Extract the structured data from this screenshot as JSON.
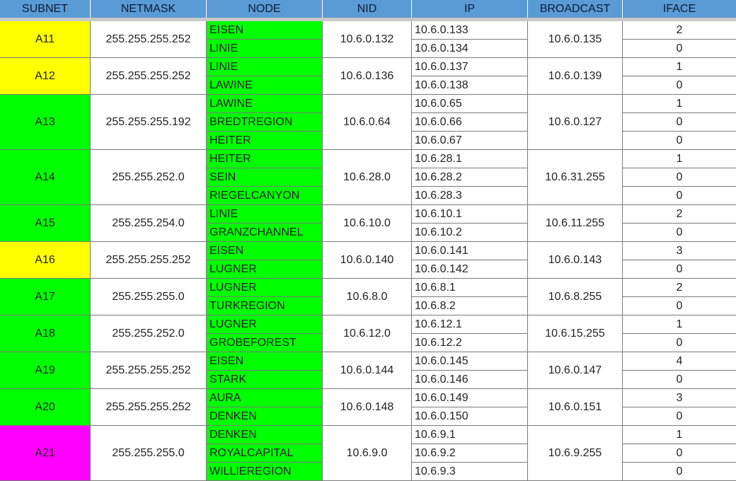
{
  "colors": {
    "header": "#5b9bd5",
    "yellow": "#ffff00",
    "green": "#00ff00",
    "magenta": "#ff00ff",
    "white": "#ffffff"
  },
  "headers": [
    "SUBNET",
    "NETMASK",
    "NODE",
    "NID",
    "IP",
    "BROADCAST",
    "IFACE"
  ],
  "subnets": [
    {
      "subnet": "A11",
      "color": "#ffff00",
      "netmask": "255.255.255.252",
      "nid": "10.6.0.132",
      "broadcast": "10.6.0.135",
      "rows": [
        {
          "node": "EISEN",
          "ip": "10.6.0.133",
          "iface": "2"
        },
        {
          "node": "LINIE",
          "ip": "10.6.0.134",
          "iface": "0"
        }
      ]
    },
    {
      "subnet": "A12",
      "color": "#ffff00",
      "netmask": "255.255.255.252",
      "nid": "10.6.0.136",
      "broadcast": "10.6.0.139",
      "rows": [
        {
          "node": "LINIE",
          "ip": "10.6.0.137",
          "iface": "1"
        },
        {
          "node": "LAWINE",
          "ip": "10.6.0.138",
          "iface": "0"
        }
      ]
    },
    {
      "subnet": "A13",
      "color": "#00ff00",
      "netmask": "255.255.255.192",
      "nid": "10.6.0.64",
      "broadcast": "10.6.0.127",
      "rows": [
        {
          "node": "LAWINE",
          "ip": "10.6.0.65",
          "iface": "1"
        },
        {
          "node": "BREDTREGION",
          "ip": "10.6.0.66",
          "iface": "0"
        },
        {
          "node": "HEITER",
          "ip": "10.6.0.67",
          "iface": "0"
        }
      ]
    },
    {
      "subnet": "A14",
      "color": "#00ff00",
      "netmask": "255.255.252.0",
      "nid": "10.6.28.0",
      "broadcast": "10.6.31.255",
      "rows": [
        {
          "node": "HEITER",
          "ip": "10.6.28.1",
          "iface": "1"
        },
        {
          "node": "SEIN",
          "ip": "10.6.28.2",
          "iface": "0"
        },
        {
          "node": "RIEGELCANYON",
          "ip": "10.6.28.3",
          "iface": "0"
        }
      ]
    },
    {
      "subnet": "A15",
      "color": "#00ff00",
      "netmask": "255.255.254.0",
      "nid": "10.6.10.0",
      "broadcast": "10.6.11.255",
      "rows": [
        {
          "node": "LINIE",
          "ip": "10.6.10.1",
          "iface": "2"
        },
        {
          "node": "GRANZCHANNEL",
          "ip": "10.6.10.2",
          "iface": "0"
        }
      ]
    },
    {
      "subnet": "A16",
      "color": "#ffff00",
      "netmask": "255.255.255.252",
      "nid": "10.6.0.140",
      "broadcast": "10.6.0.143",
      "rows": [
        {
          "node": "EISEN",
          "ip": "10.6.0.141",
          "iface": "3"
        },
        {
          "node": "LUGNER",
          "ip": "10.6.0.142",
          "iface": "0"
        }
      ]
    },
    {
      "subnet": "A17",
      "color": "#00ff00",
      "netmask": "255.255.255.0",
      "nid": "10.6.8.0",
      "broadcast": "10.6.8.255",
      "rows": [
        {
          "node": "LUGNER",
          "ip": "10.6.8.1",
          "iface": "2"
        },
        {
          "node": "TURKREGION",
          "ip": "10.6.8.2",
          "iface": "0"
        }
      ]
    },
    {
      "subnet": "A18",
      "color": "#00ff00",
      "netmask": "255.255.252.0",
      "nid": "10.6.12.0",
      "broadcast": "10.6.15.255",
      "rows": [
        {
          "node": "LUGNER",
          "ip": "10.6.12.1",
          "iface": "1"
        },
        {
          "node": "GROBEFOREST",
          "ip": "10.6.12.2",
          "iface": "0"
        }
      ]
    },
    {
      "subnet": "A19",
      "color": "#00ff00",
      "netmask": "255.255.255.252",
      "nid": "10.6.0.144",
      "broadcast": "10.6.0.147",
      "rows": [
        {
          "node": "EISEN",
          "ip": "10.6.0.145",
          "iface": "4"
        },
        {
          "node": "STARK",
          "ip": "10.6.0.146",
          "iface": "0"
        }
      ]
    },
    {
      "subnet": "A20",
      "color": "#00ff00",
      "netmask": "255.255.255.252",
      "nid": "10.6.0.148",
      "broadcast": "10.6.0.151",
      "rows": [
        {
          "node": "AURA",
          "ip": "10.6.0.149",
          "iface": "3"
        },
        {
          "node": "DENKEN",
          "ip": "10.6.0.150",
          "iface": "0"
        }
      ]
    },
    {
      "subnet": "A21",
      "color": "#ff00ff",
      "netmask": "255.255.255.0",
      "nid": "10.6.9.0",
      "broadcast": "10.6.9.255",
      "rows": [
        {
          "node": "DENKEN",
          "ip": "10.6.9.1",
          "iface": "1"
        },
        {
          "node": "ROYALCAPITAL",
          "ip": "10.6.9.2",
          "iface": "0"
        },
        {
          "node": "WILLIEREGION",
          "ip": "10.6.9.3",
          "iface": "0"
        }
      ]
    }
  ]
}
